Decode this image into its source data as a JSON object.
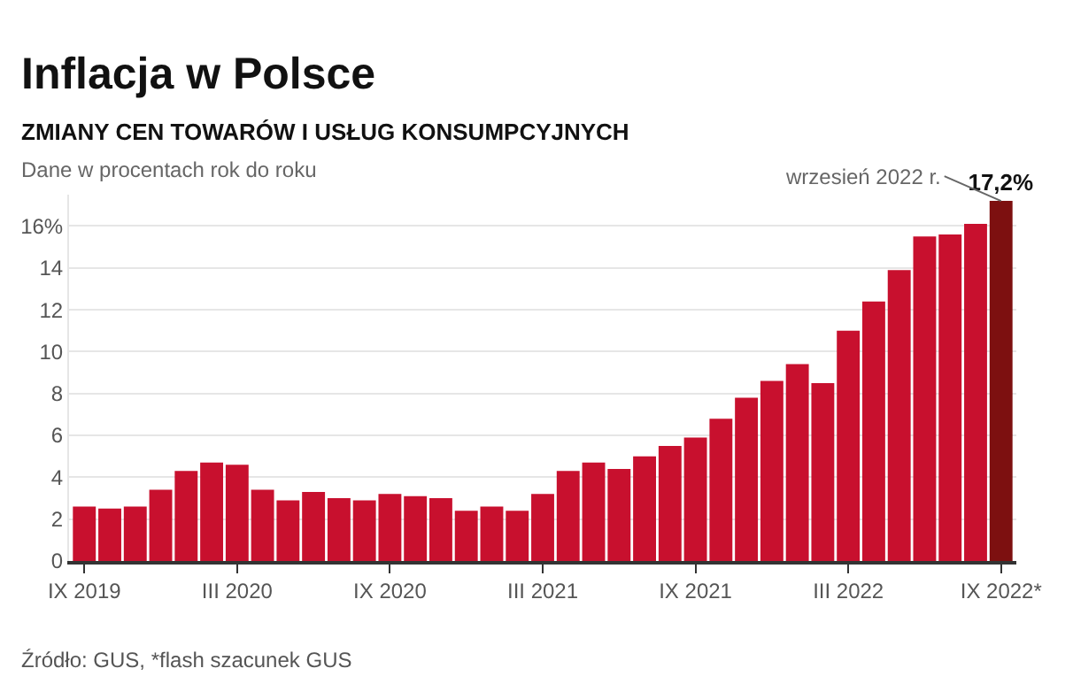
{
  "chart_data": {
    "type": "bar",
    "title": "Inflacja w Polsce",
    "subtitle": "ZMIANY CEN TOWARÓW I USŁUG KONSUMPCYJNYCH",
    "annotations": [
      "Dane w procentach rok do roku",
      {
        "text": "wrzesień 2022 r.",
        "x": "IX 2022*",
        "y": 17.2
      },
      "Źródło: GUS, *flash szacunek GUS"
    ],
    "categories": [
      "IX 2019",
      null,
      null,
      null,
      null,
      null,
      "III 2020",
      null,
      null,
      null,
      null,
      null,
      "IX 2020",
      null,
      null,
      null,
      null,
      null,
      "III 2021",
      null,
      null,
      null,
      null,
      null,
      "IX 2021",
      null,
      null,
      null,
      null,
      null,
      "III 2022",
      null,
      null,
      null,
      null,
      null,
      "IX 2022*"
    ],
    "values": [
      2.6,
      2.5,
      2.6,
      3.4,
      4.3,
      4.7,
      4.6,
      3.4,
      2.9,
      3.3,
      3.0,
      2.9,
      3.2,
      3.1,
      3.0,
      2.4,
      2.6,
      2.4,
      3.2,
      4.3,
      4.7,
      4.4,
      5.0,
      5.5,
      5.9,
      6.8,
      7.8,
      8.6,
      9.4,
      8.5,
      11.0,
      12.4,
      13.9,
      15.5,
      15.6,
      16.1,
      17.2
    ],
    "colors": [
      "#c8102e",
      "#c8102e",
      "#c8102e",
      "#c8102e",
      "#c8102e",
      "#c8102e",
      "#c8102e",
      "#c8102e",
      "#c8102e",
      "#c8102e",
      "#c8102e",
      "#c8102e",
      "#c8102e",
      "#c8102e",
      "#c8102e",
      "#c8102e",
      "#c8102e",
      "#c8102e",
      "#c8102e",
      "#c8102e",
      "#c8102e",
      "#c8102e",
      "#c8102e",
      "#c8102e",
      "#c8102e",
      "#c8102e",
      "#c8102e",
      "#c8102e",
      "#c8102e",
      "#c8102e",
      "#c8102e",
      "#c8102e",
      "#c8102e",
      "#c8102e",
      "#c8102e",
      "#c8102e",
      "#7d1010"
    ],
    "value_labels": [
      null,
      null,
      null,
      null,
      null,
      null,
      null,
      null,
      null,
      null,
      null,
      null,
      null,
      null,
      null,
      null,
      null,
      null,
      null,
      null,
      null,
      null,
      null,
      null,
      null,
      null,
      null,
      null,
      null,
      null,
      null,
      null,
      null,
      null,
      null,
      null,
      "17,2%"
    ],
    "ylim": [
      0,
      17.5
    ],
    "yticks": [
      0,
      2,
      4,
      6,
      8,
      10,
      12,
      14,
      {
        "value": 16,
        "label": "16%"
      }
    ],
    "grid": "y",
    "legend": false
  }
}
